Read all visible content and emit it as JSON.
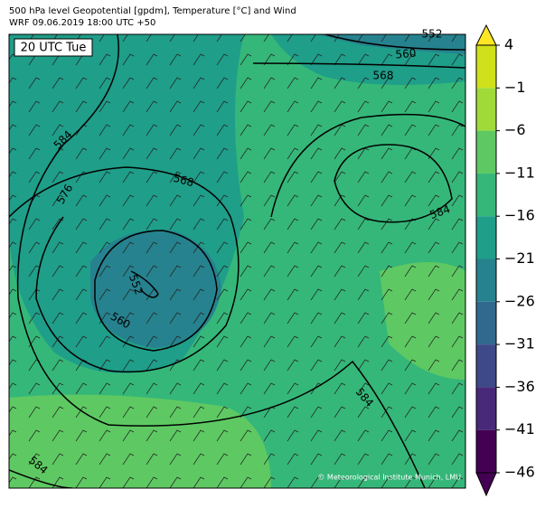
{
  "header": {
    "title": "500 hPa level Geopotential [gpdm], Temperature [°C] and Wind",
    "subtitle": "WRF 09.06.2019 18:00 UTC +50"
  },
  "map": {
    "time_label": "20 UTC Tue",
    "credit": "© Meteorological Institute Munich, LMU",
    "contour_labels": [
      "552",
      "560",
      "568",
      "584",
      "576",
      "568",
      "552",
      "560",
      "584",
      "584",
      "584"
    ]
  },
  "colorbar": {
    "labels": [
      "4",
      "−1",
      "−6",
      "−11",
      "−16",
      "−21",
      "−26",
      "−31",
      "−36",
      "−41",
      "−46"
    ],
    "colors": [
      "#fde725",
      "#d0e11c",
      "#a0da39",
      "#5ec962",
      "#35b779",
      "#1f9e89",
      "#26828e",
      "#31688e",
      "#3e4989",
      "#482878",
      "#440154",
      "#440154"
    ]
  }
}
